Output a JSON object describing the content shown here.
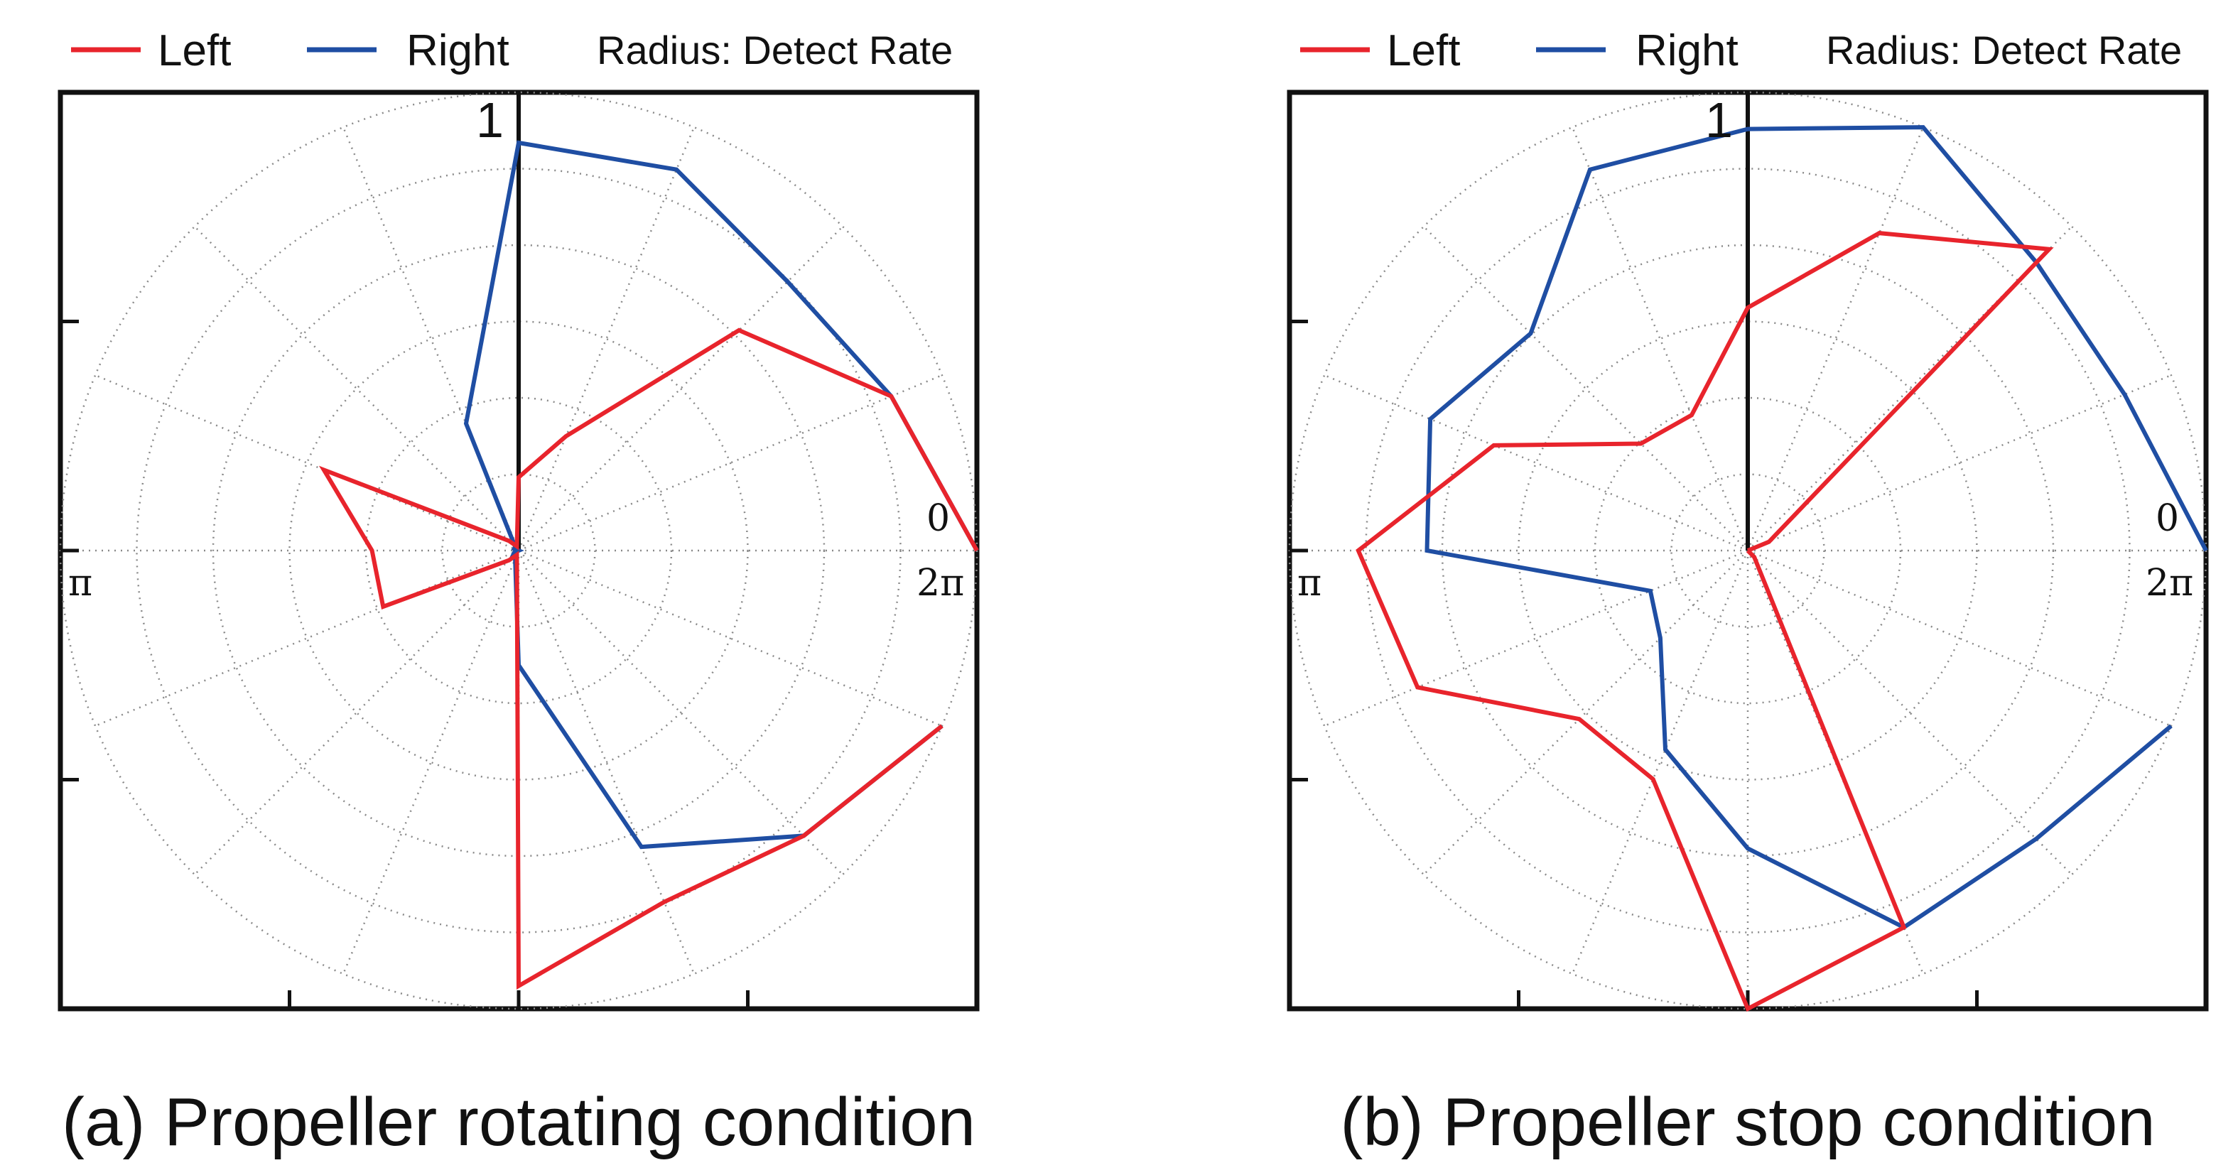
{
  "chart_data": [
    {
      "type": "polar",
      "caption": "(a) Propeller rotating condition",
      "radius_label": "Radius: Detect Rate",
      "rlim": [
        0,
        1
      ],
      "radial_tick_label": "1",
      "angle_labels": {
        "zero": "0",
        "two_pi": "2π",
        "pi": "π"
      },
      "angle_directions": 16,
      "radial_rings": 6,
      "colors": {
        "Left": "#e8242c",
        "Right": "#1f4ea3"
      },
      "series": [
        {
          "name": "Left",
          "values": [
            1.0,
            0.88,
            0.68,
            0.27,
            0.16,
            0.01,
            0.03,
            0.46,
            0.32,
            0.32,
            0.03,
            0.01,
            0.95,
            0.83,
            0.88,
            1.0
          ]
        },
        {
          "name": "Right",
          "values": [
            1.0,
            0.88,
            0.83,
            0.9,
            0.89,
            0.3,
            0.01,
            0.01,
            0.0,
            0.01,
            0.02,
            0.02,
            0.25,
            0.7,
            0.88,
            1.0
          ]
        }
      ]
    },
    {
      "type": "polar",
      "caption": "(b) Propeller stop condition",
      "radius_label": "Radius: Detect Rate",
      "rlim": [
        0,
        1
      ],
      "radial_tick_label": "1",
      "angle_labels": {
        "zero": "0",
        "two_pi": "2π",
        "pi": "π"
      },
      "angle_directions": 16,
      "radial_rings": 6,
      "colors": {
        "Left": "#e8242c",
        "Right": "#1f4ea3"
      },
      "series": [
        {
          "name": "Left",
          "values": [
            0.0,
            0.05,
            0.93,
            0.75,
            0.53,
            0.32,
            0.33,
            0.6,
            0.85,
            0.78,
            0.52,
            0.54,
            1.0,
            0.89,
            0.02,
            0.0
          ]
        },
        {
          "name": "Right",
          "values": [
            1.0,
            0.89,
            0.89,
            1.0,
            0.92,
            0.9,
            0.67,
            0.75,
            0.7,
            0.23,
            0.27,
            0.47,
            0.65,
            0.89,
            0.89,
            1.0
          ]
        }
      ]
    }
  ],
  "legend": {
    "left_label": "Left",
    "right_label": "Right"
  }
}
